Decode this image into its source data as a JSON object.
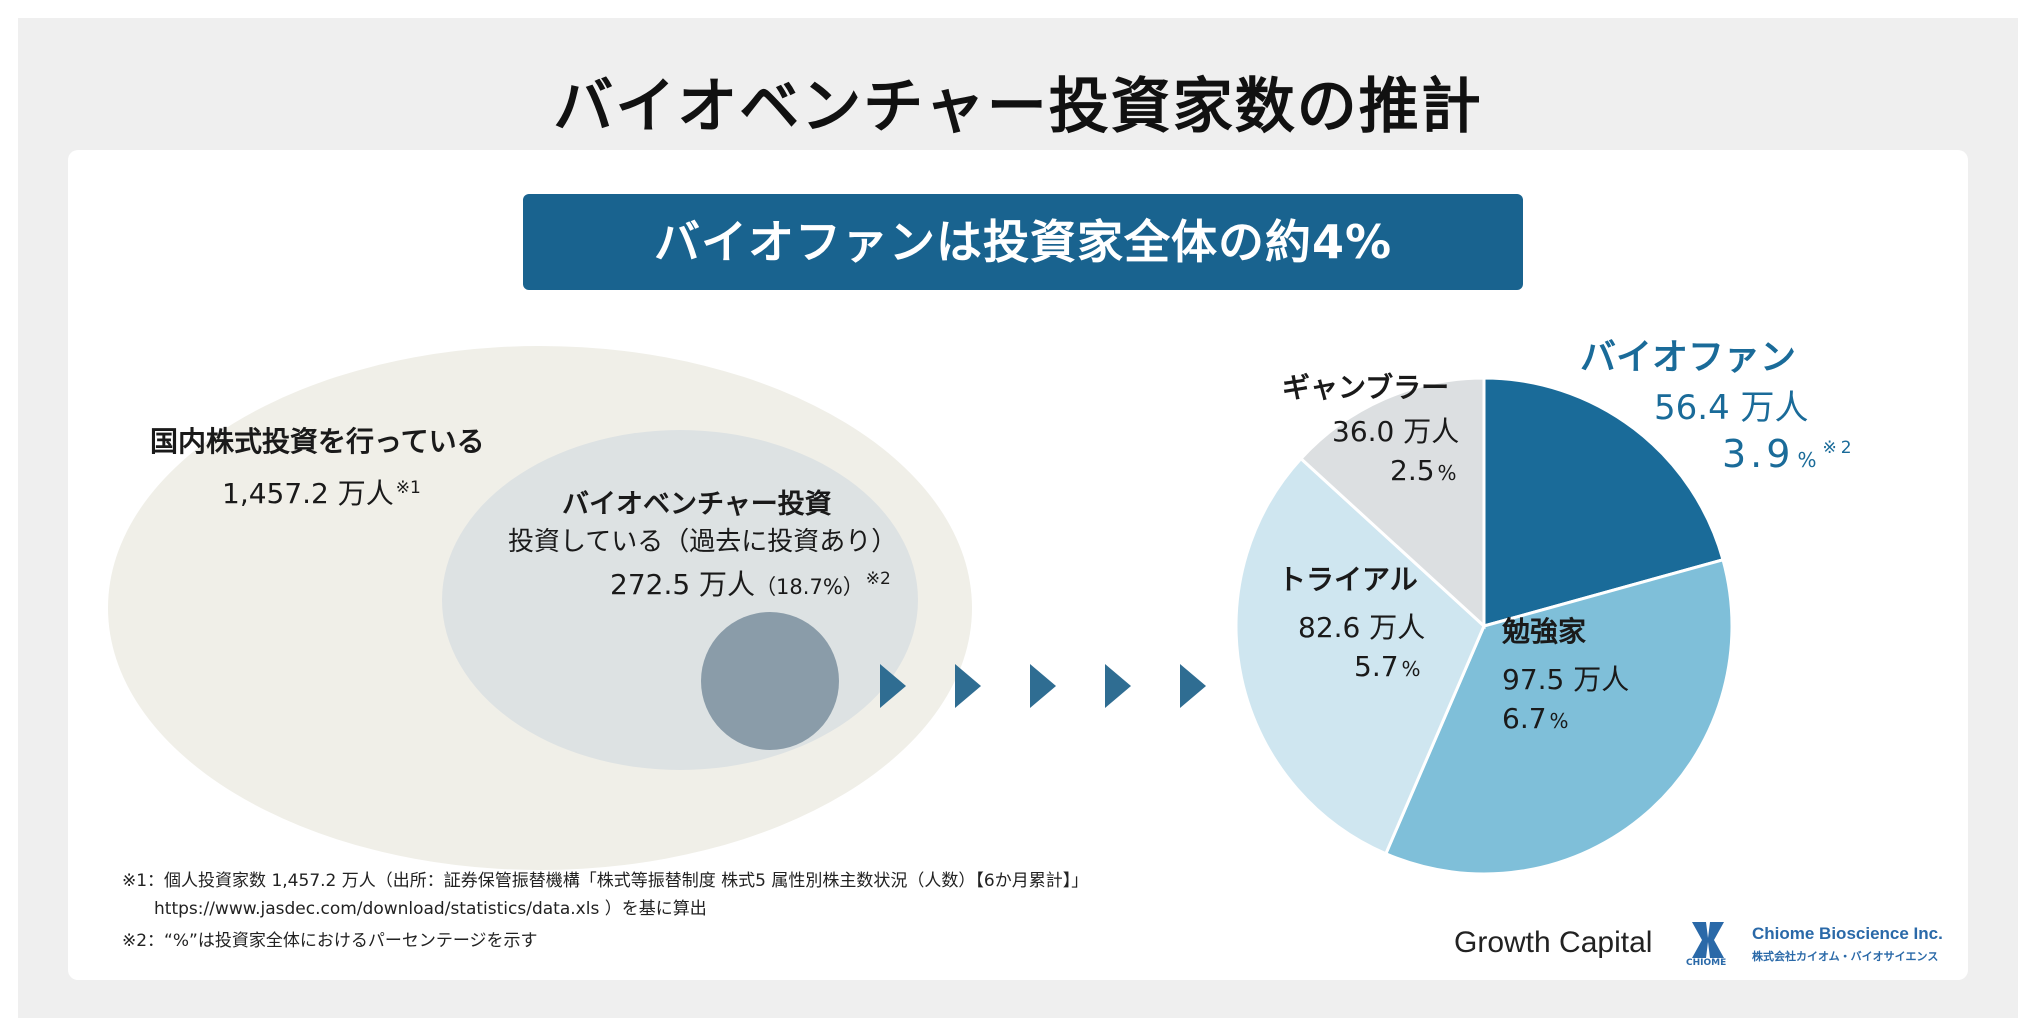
{
  "title": "バイオベンチャー投資家数の推計",
  "banner": "バイオファンは投資家全体の約4%",
  "domestic": {
    "label": "国内株式投資を行っている",
    "value": "1,457.2 万人",
    "note_mark": "※1"
  },
  "bioventure": {
    "label": "バイオベンチャー投資",
    "sub": "投資している（過去に投資あり）",
    "value": "272.5 万人",
    "share": "（18.7%）",
    "note_mark": "※2"
  },
  "chart_data": {
    "type": "pie",
    "unit": "万人",
    "categories": [
      "バイオファン",
      "勉強家",
      "トライアル",
      "ギャンブラー"
    ],
    "values": [
      56.4,
      97.5,
      82.6,
      36.0
    ],
    "value_labels": [
      "56.4 万人",
      "97.5 万人",
      "82.6 万人",
      "36.0 万人"
    ],
    "percent_labels": [
      "3.9",
      "6.7",
      "5.7",
      "2.5"
    ],
    "percent_unit": "%",
    "percent_note": "※2",
    "colors": [
      "#1a6b99",
      "#7fbfd9",
      "#cfe6f0",
      "#dcdfe1"
    ]
  },
  "footnotes": {
    "note1_line1": "※1：個人投資家数 1,457.2 万人（出所：証券保管振替機構「株式等振替制度 株式5 属性別株主数状況（人数）【6か月累計】」",
    "note1_line2": "https://www.jasdec.com/download/statistics/data.xls ）を基に算出",
    "note2": "※2：“%”は投資家全体におけるパーセンテージを示す"
  },
  "logos": {
    "growth_capital": "Growth Capital",
    "chiome_mark": "CHIOME",
    "chiome_en": "Chiome Bioscience Inc.",
    "chiome_ja": "株式会社カイオム・バイオサイエンス"
  },
  "colors": {
    "accent": "#19638f",
    "outer_ellipse": "#f0efe8",
    "inner_ellipse": "#dde2e3",
    "circle": "#8a9ca9",
    "arrow": "#2f6d92"
  }
}
